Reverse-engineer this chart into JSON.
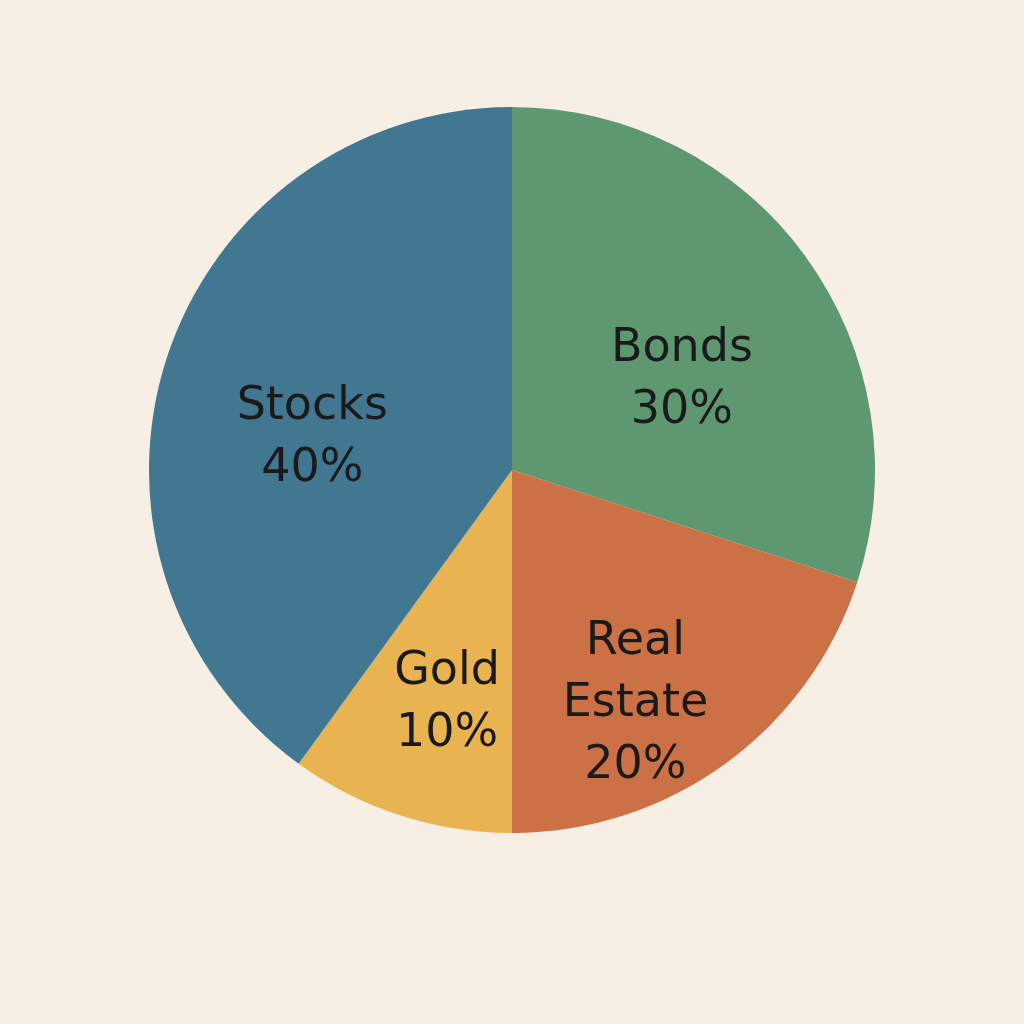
{
  "chart_data": {
    "type": "pie",
    "categories": [
      "Bonds",
      "Real Estate",
      "Gold",
      "Stocks"
    ],
    "values": [
      30,
      20,
      10,
      40
    ],
    "value_labels": [
      "30%",
      "20%",
      "10%",
      "40%"
    ],
    "colors": [
      "#5e9870",
      "#cc7045",
      "#e9b352",
      "#427792"
    ]
  }
}
